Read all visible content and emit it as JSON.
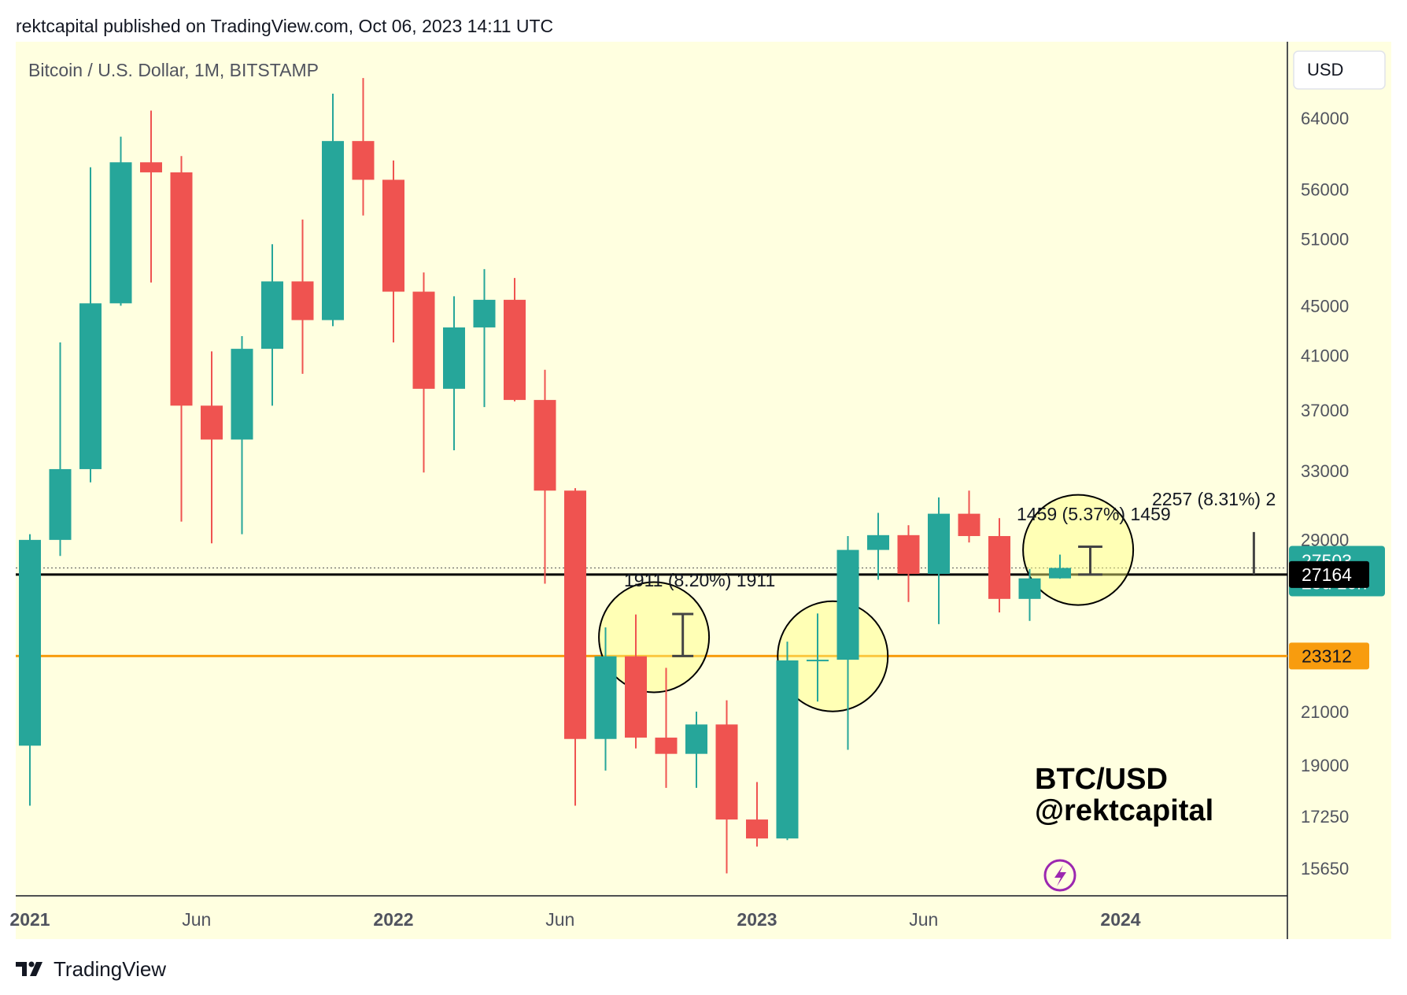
{
  "header": {
    "published": "rektcapital published on TradingView.com, Oct 06, 2023 14:11 UTC"
  },
  "footer": {
    "brand": "TradingView",
    "logo_icon": "tradingview-logo-icon"
  },
  "colors": {
    "background": "#ffffe0",
    "up": "#26a69a",
    "down": "#ef5350",
    "support_line": "#000000",
    "orange_line": "#f89c0e",
    "price_badge": "#26a69a",
    "black_badge": "#000000",
    "orange_badge": "#f89c0e",
    "circle_fill": "#ffff80"
  },
  "chart_data": {
    "type": "candlestick",
    "symbol_title": "Bitcoin / U.S. Dollar, 1M, BITSTAMP",
    "currency": "USD",
    "scale": "log",
    "ylim": [
      14700,
      75000
    ],
    "y_ticks": [
      64000,
      56000,
      51000,
      45000,
      41000,
      37000,
      33000,
      29000,
      21000,
      19000,
      17250,
      15650
    ],
    "y_tick_labels": [
      "64000",
      "56000",
      "51000",
      "45000",
      "41000",
      "37000",
      "33000",
      "29000",
      "21000",
      "19000",
      "17250",
      "15650"
    ],
    "x_labels": [
      {
        "label": "2021",
        "month": 1,
        "bold": true
      },
      {
        "label": "Jun",
        "month": 6.5,
        "bold": false
      },
      {
        "label": "2022",
        "month": 13,
        "bold": true
      },
      {
        "label": "Jun",
        "month": 18.5,
        "bold": false
      },
      {
        "label": "2023",
        "month": 25,
        "bold": true
      },
      {
        "label": "Jun",
        "month": 30.5,
        "bold": false
      },
      {
        "label": "2024",
        "month": 37,
        "bold": true
      }
    ],
    "candles": [
      {
        "month": "2020-12",
        "open": 19700,
        "high": 29300,
        "low": 17600,
        "close": 28990
      },
      {
        "month": "2021-01",
        "open": 28990,
        "high": 42000,
        "low": 28130,
        "close": 33110
      },
      {
        "month": "2021-02",
        "open": 33110,
        "high": 58350,
        "low": 32300,
        "close": 45200
      },
      {
        "month": "2021-03",
        "open": 45200,
        "high": 61800,
        "low": 45000,
        "close": 58900
      },
      {
        "month": "2021-04",
        "open": 58900,
        "high": 64900,
        "low": 47000,
        "close": 57800
      },
      {
        "month": "2021-05",
        "open": 57800,
        "high": 59600,
        "low": 30000,
        "close": 37300
      },
      {
        "month": "2021-06",
        "open": 37300,
        "high": 41300,
        "low": 28800,
        "close": 35000
      },
      {
        "month": "2021-07",
        "open": 35000,
        "high": 42500,
        "low": 29300,
        "close": 41500
      },
      {
        "month": "2021-08",
        "open": 41500,
        "high": 50500,
        "low": 37300,
        "close": 47100
      },
      {
        "month": "2021-09",
        "open": 47100,
        "high": 52900,
        "low": 39600,
        "close": 43800
      },
      {
        "month": "2021-10",
        "open": 43800,
        "high": 67000,
        "low": 43300,
        "close": 61300
      },
      {
        "month": "2021-11",
        "open": 61300,
        "high": 69000,
        "low": 53300,
        "close": 57000
      },
      {
        "month": "2021-12",
        "open": 57000,
        "high": 59100,
        "low": 42000,
        "close": 46200
      },
      {
        "month": "2022-01",
        "open": 46200,
        "high": 47900,
        "low": 32900,
        "close": 38500
      },
      {
        "month": "2022-02",
        "open": 38500,
        "high": 45800,
        "low": 34300,
        "close": 43200
      },
      {
        "month": "2022-03",
        "open": 43200,
        "high": 48200,
        "low": 37200,
        "close": 45500
      },
      {
        "month": "2022-04",
        "open": 45500,
        "high": 47400,
        "low": 37600,
        "close": 37700
      },
      {
        "month": "2022-05",
        "open": 37700,
        "high": 39900,
        "low": 26700,
        "close": 31800
      },
      {
        "month": "2022-06",
        "open": 31800,
        "high": 31950,
        "low": 17600,
        "close": 19950
      },
      {
        "month": "2022-07",
        "open": 19950,
        "high": 24600,
        "low": 18800,
        "close": 23300
      },
      {
        "month": "2022-08",
        "open": 23300,
        "high": 25200,
        "low": 19600,
        "close": 20000
      },
      {
        "month": "2022-09",
        "open": 20000,
        "high": 22800,
        "low": 18200,
        "close": 19400
      },
      {
        "month": "2022-10",
        "open": 19400,
        "high": 21000,
        "low": 18200,
        "close": 20500
      },
      {
        "month": "2022-11",
        "open": 20500,
        "high": 21450,
        "low": 15500,
        "close": 17150
      },
      {
        "month": "2022-12",
        "open": 17150,
        "high": 18400,
        "low": 16300,
        "close": 16550
      },
      {
        "month": "2023-01",
        "open": 16550,
        "high": 23950,
        "low": 16500,
        "close": 23120
      },
      {
        "month": "2023-02",
        "open": 23120,
        "high": 25250,
        "low": 21400,
        "close": 23150
      },
      {
        "month": "2023-03",
        "open": 23150,
        "high": 29200,
        "low": 19550,
        "close": 28450
      },
      {
        "month": "2023-04",
        "open": 28450,
        "high": 30500,
        "low": 26900,
        "close": 29250
      },
      {
        "month": "2023-05",
        "open": 29250,
        "high": 29800,
        "low": 25800,
        "close": 27200
      },
      {
        "month": "2023-06",
        "open": 27200,
        "high": 31400,
        "low": 24750,
        "close": 30450
      },
      {
        "month": "2023-07",
        "open": 30450,
        "high": 31800,
        "low": 28850,
        "close": 29200
      },
      {
        "month": "2023-08",
        "open": 29200,
        "high": 30200,
        "low": 25300,
        "close": 25950
      },
      {
        "month": "2023-09",
        "open": 25950,
        "high": 27450,
        "low": 24900,
        "close": 26970
      },
      {
        "month": "2023-10",
        "open": 26970,
        "high": 28200,
        "low": 26950,
        "close": 27503
      }
    ],
    "horizontal_lines": [
      {
        "price": 27164,
        "color": "#000000",
        "label": "27164"
      },
      {
        "price": 23312,
        "color": "#f89c0e",
        "label": "23312"
      }
    ],
    "current_price": {
      "value": "27503",
      "countdown": "25d 10h"
    },
    "measurements": [
      {
        "text": "1911 (8.20%) 1911",
        "month_from": 21.2,
        "month_to": 21.9,
        "price_low": 23312,
        "price_high": 25223
      },
      {
        "text": "1459 (5.37%) 1459",
        "month_from": 34.6,
        "month_to": 35.4,
        "price_low": 27164,
        "price_high": 28623
      },
      {
        "text": "2257 (8.31%) 2",
        "month_from": 40.4,
        "month_to": 40.4,
        "price_low": 27164,
        "price_high": 29421
      }
    ],
    "circles": [
      {
        "center_month": 20.6,
        "center_price": 24150
      },
      {
        "center_month": 26.5,
        "center_price": 23300
      },
      {
        "center_month": 34.6,
        "center_price": 28450
      }
    ],
    "watermark": {
      "line1": "BTC/USD",
      "line2": "@rektcapital"
    }
  }
}
